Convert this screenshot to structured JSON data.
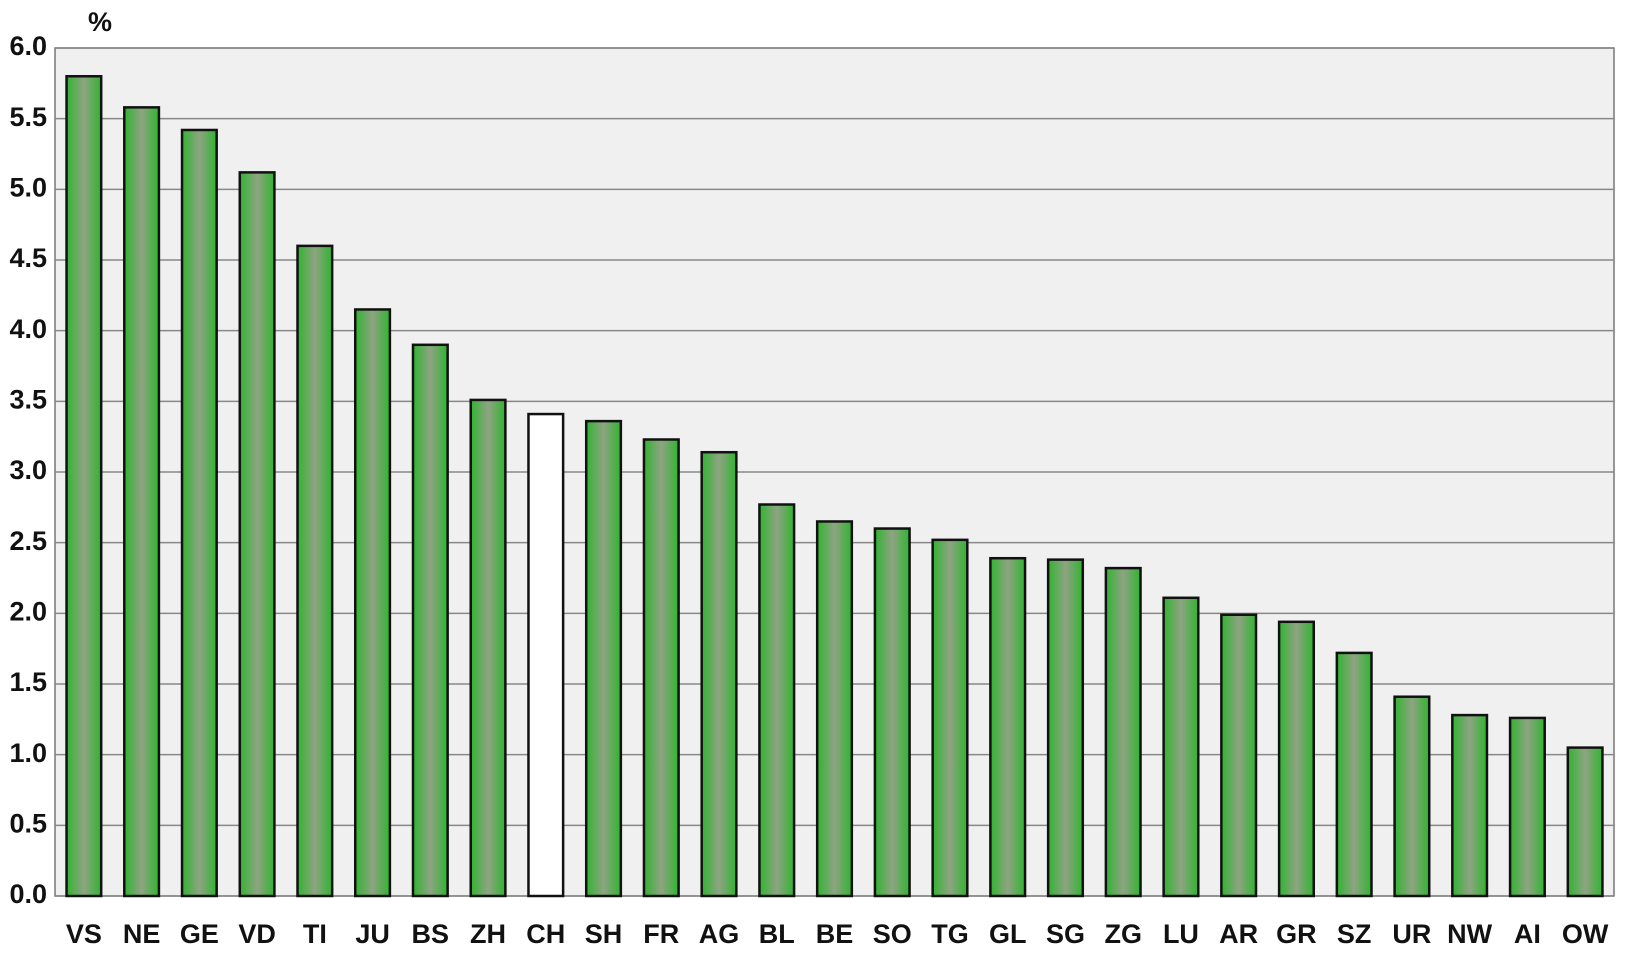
{
  "chart_data": {
    "type": "bar",
    "y_label": "%",
    "categories": [
      "VS",
      "NE",
      "GE",
      "VD",
      "TI",
      "JU",
      "BS",
      "ZH",
      "CH",
      "SH",
      "FR",
      "AG",
      "BL",
      "BE",
      "SO",
      "TG",
      "GL",
      "SG",
      "ZG",
      "LU",
      "AR",
      "GR",
      "SZ",
      "UR",
      "NW",
      "AI",
      "OW"
    ],
    "values": [
      5.8,
      5.58,
      5.42,
      5.12,
      4.6,
      4.15,
      3.9,
      3.51,
      3.41,
      3.36,
      3.23,
      3.14,
      2.77,
      2.65,
      2.6,
      2.52,
      2.39,
      2.38,
      2.32,
      2.11,
      1.99,
      1.94,
      1.72,
      1.41,
      1.28,
      1.26,
      1.05
    ],
    "colors": [
      "#2fb52f",
      "#2fb52f",
      "#2fb52f",
      "#2fb52f",
      "#2fb52f",
      "#2fb52f",
      "#2fb52f",
      "#2fb52f",
      "#ffffff",
      "#2fb52f",
      "#2fb52f",
      "#2fb52f",
      "#2fb52f",
      "#2fb52f",
      "#2fb52f",
      "#2fb52f",
      "#2fb52f",
      "#2fb52f",
      "#2fb52f",
      "#2fb52f",
      "#2fb52f",
      "#2fb52f",
      "#2fb52f",
      "#2fb52f",
      "#2fb52f",
      "#2fb52f",
      "#2fb52f"
    ],
    "ylim": [
      0,
      6
    ],
    "yticks": [
      {
        "value": 0,
        "label": "0.0"
      },
      0.5,
      {
        "value": 1,
        "label": "1.0"
      },
      1.5,
      {
        "value": 2,
        "label": "2.0"
      },
      2.5,
      {
        "value": 3,
        "label": "3.0"
      },
      3.5,
      {
        "value": 4,
        "label": "4.0"
      },
      4.5,
      {
        "value": 5,
        "label": "5.0"
      },
      5.5,
      {
        "value": 6,
        "label": "6.0"
      }
    ],
    "grid": true
  }
}
